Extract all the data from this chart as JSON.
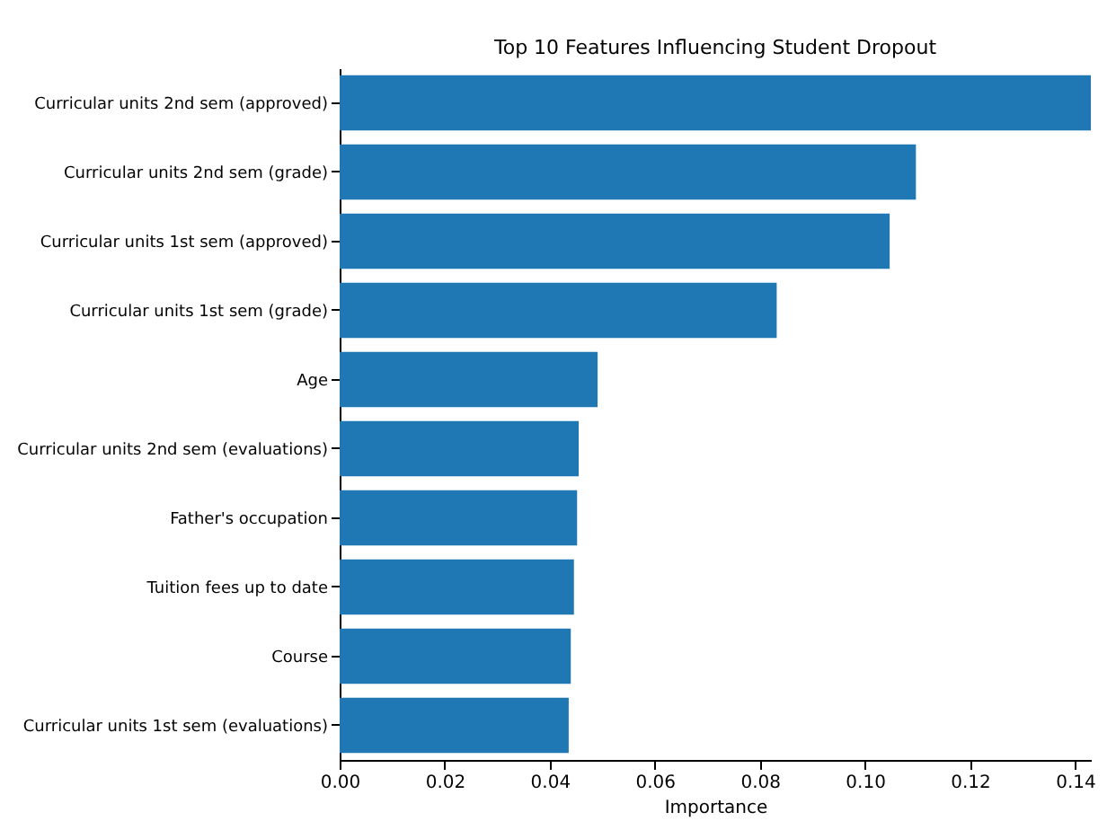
{
  "chart_data": {
    "type": "bar",
    "orientation": "horizontal",
    "title": "Top 10 Features Influencing Student Dropout",
    "xlabel": "Importance",
    "categories": [
      "Curricular units 2nd sem (approved)",
      "Curricular units 2nd sem (grade)",
      "Curricular units 1st sem (approved)",
      "Curricular units 1st sem (grade)",
      "Age",
      "Curricular units 2nd sem (evaluations)",
      "Father's occupation",
      "Tuition fees up to date",
      "Course",
      "Curricular units 1st sem (evaluations)"
    ],
    "values": [
      0.143,
      0.1097,
      0.1047,
      0.0832,
      0.0491,
      0.0455,
      0.0452,
      0.0446,
      0.044,
      0.0436
    ],
    "color": "#1f77b4",
    "xlim": [
      0,
      0.143
    ],
    "xticks": [
      {
        "value": 0,
        "label": "0.00"
      },
      {
        "value": 0.02,
        "label": "0.02"
      },
      {
        "value": 0.04,
        "label": "0.04"
      },
      {
        "value": 0.06,
        "label": "0.06"
      },
      {
        "value": 0.08,
        "label": "0.08"
      },
      {
        "value": 0.1,
        "label": "0.10"
      },
      {
        "value": 0.12,
        "label": "0.12"
      },
      {
        "value": 0.14,
        "label": "0.14"
      }
    ],
    "grid": false
  }
}
